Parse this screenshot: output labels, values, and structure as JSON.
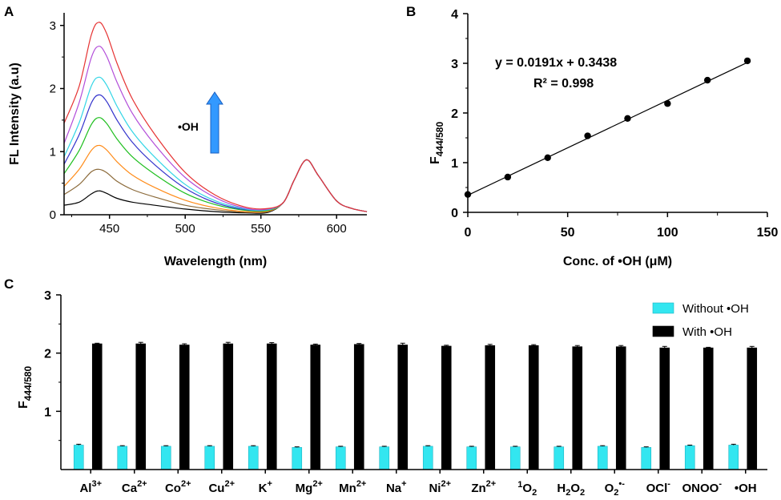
{
  "chart_data": [
    {
      "panel": "A",
      "type": "line",
      "xlabel": "Wavelength (nm)",
      "ylabel": "FL Intensity (a.u)",
      "xlim": [
        420,
        620
      ],
      "ylim": [
        0,
        3.2
      ],
      "xticks": [
        450,
        500,
        550,
        600
      ],
      "yticks": [
        0,
        1,
        2,
        3
      ],
      "annotation": "•OH",
      "arrow_color": "#3399ff",
      "series": [
        {
          "color": "#000000",
          "values": [
            [
              420,
              0.15
            ],
            [
              430,
              0.2
            ],
            [
              438,
              0.33
            ],
            [
              443,
              0.38
            ],
            [
              448,
              0.34
            ],
            [
              455,
              0.26
            ],
            [
              465,
              0.2
            ],
            [
              480,
              0.15
            ],
            [
              500,
              0.09
            ],
            [
              520,
              0.05
            ],
            [
              540,
              0.03
            ],
            [
              555,
              0.04
            ],
            [
              565,
              0.2
            ],
            [
              572,
              0.55
            ],
            [
              580,
              0.87
            ],
            [
              588,
              0.62
            ],
            [
              600,
              0.22
            ],
            [
              610,
              0.1
            ],
            [
              620,
              0.05
            ]
          ]
        },
        {
          "color": "#8b6a3a",
          "values": [
            [
              420,
              0.32
            ],
            [
              430,
              0.48
            ],
            [
              438,
              0.68
            ],
            [
              443,
              0.72
            ],
            [
              448,
              0.67
            ],
            [
              455,
              0.53
            ],
            [
              465,
              0.4
            ],
            [
              480,
              0.28
            ],
            [
              500,
              0.15
            ],
            [
              520,
              0.08
            ],
            [
              540,
              0.04
            ],
            [
              555,
              0.05
            ],
            [
              565,
              0.2
            ],
            [
              572,
              0.55
            ],
            [
              580,
              0.87
            ],
            [
              588,
              0.62
            ],
            [
              600,
              0.22
            ],
            [
              610,
              0.1
            ],
            [
              620,
              0.05
            ]
          ]
        },
        {
          "color": "#ff8c1a",
          "values": [
            [
              420,
              0.45
            ],
            [
              430,
              0.72
            ],
            [
              438,
              1.02
            ],
            [
              443,
              1.1
            ],
            [
              448,
              1.03
            ],
            [
              455,
              0.84
            ],
            [
              465,
              0.63
            ],
            [
              480,
              0.43
            ],
            [
              500,
              0.23
            ],
            [
              520,
              0.11
            ],
            [
              540,
              0.05
            ],
            [
              555,
              0.06
            ],
            [
              565,
              0.2
            ],
            [
              572,
              0.55
            ],
            [
              580,
              0.87
            ],
            [
              588,
              0.62
            ],
            [
              600,
              0.22
            ],
            [
              610,
              0.1
            ],
            [
              620,
              0.05
            ]
          ]
        },
        {
          "color": "#1fbf1f",
          "values": [
            [
              420,
              0.65
            ],
            [
              430,
              1.02
            ],
            [
              438,
              1.43
            ],
            [
              443,
              1.54
            ],
            [
              448,
              1.45
            ],
            [
              455,
              1.2
            ],
            [
              465,
              0.92
            ],
            [
              480,
              0.64
            ],
            [
              500,
              0.34
            ],
            [
              520,
              0.16
            ],
            [
              540,
              0.07
            ],
            [
              555,
              0.07
            ],
            [
              565,
              0.2
            ],
            [
              572,
              0.55
            ],
            [
              580,
              0.87
            ],
            [
              588,
              0.62
            ],
            [
              600,
              0.22
            ],
            [
              610,
              0.1
            ],
            [
              620,
              0.05
            ]
          ]
        },
        {
          "color": "#3333cc",
          "values": [
            [
              420,
              0.8
            ],
            [
              430,
              1.27
            ],
            [
              438,
              1.77
            ],
            [
              443,
              1.9
            ],
            [
              448,
              1.8
            ],
            [
              455,
              1.5
            ],
            [
              465,
              1.15
            ],
            [
              480,
              0.79
            ],
            [
              500,
              0.42
            ],
            [
              520,
              0.19
            ],
            [
              540,
              0.08
            ],
            [
              555,
              0.08
            ],
            [
              565,
              0.2
            ],
            [
              572,
              0.55
            ],
            [
              580,
              0.87
            ],
            [
              588,
              0.62
            ],
            [
              600,
              0.22
            ],
            [
              610,
              0.1
            ],
            [
              620,
              0.05
            ]
          ]
        },
        {
          "color": "#33d6e6",
          "values": [
            [
              420,
              0.92
            ],
            [
              430,
              1.46
            ],
            [
              438,
              2.04
            ],
            [
              443,
              2.18
            ],
            [
              448,
              2.06
            ],
            [
              455,
              1.72
            ],
            [
              465,
              1.32
            ],
            [
              480,
              0.91
            ],
            [
              500,
              0.48
            ],
            [
              520,
              0.22
            ],
            [
              540,
              0.09
            ],
            [
              555,
              0.08
            ],
            [
              565,
              0.2
            ],
            [
              572,
              0.55
            ],
            [
              580,
              0.87
            ],
            [
              588,
              0.62
            ],
            [
              600,
              0.22
            ],
            [
              610,
              0.1
            ],
            [
              620,
              0.05
            ]
          ]
        },
        {
          "color": "#b24dd9",
          "values": [
            [
              420,
              1.13
            ],
            [
              430,
              1.78
            ],
            [
              438,
              2.49
            ],
            [
              443,
              2.67
            ],
            [
              448,
              2.52
            ],
            [
              455,
              2.1
            ],
            [
              465,
              1.61
            ],
            [
              480,
              1.11
            ],
            [
              500,
              0.59
            ],
            [
              520,
              0.27
            ],
            [
              540,
              0.1
            ],
            [
              555,
              0.09
            ],
            [
              565,
              0.2
            ],
            [
              572,
              0.55
            ],
            [
              580,
              0.87
            ],
            [
              588,
              0.62
            ],
            [
              600,
              0.22
            ],
            [
              610,
              0.1
            ],
            [
              620,
              0.05
            ]
          ]
        },
        {
          "color": "#e63333",
          "values": [
            [
              420,
              1.45
            ],
            [
              430,
              2.04
            ],
            [
              438,
              2.85
            ],
            [
              443,
              3.05
            ],
            [
              448,
              2.88
            ],
            [
              455,
              2.4
            ],
            [
              465,
              1.84
            ],
            [
              480,
              1.27
            ],
            [
              500,
              0.67
            ],
            [
              520,
              0.31
            ],
            [
              540,
              0.12
            ],
            [
              555,
              0.1
            ],
            [
              565,
              0.2
            ],
            [
              572,
              0.55
            ],
            [
              580,
              0.87
            ],
            [
              588,
              0.62
            ],
            [
              600,
              0.22
            ],
            [
              610,
              0.1
            ],
            [
              620,
              0.05
            ]
          ]
        }
      ]
    },
    {
      "panel": "B",
      "type": "scatter",
      "xlabel": "Conc. of •OH (μM)",
      "ylabel": "F",
      "ylabel_sub": "444/580",
      "xlim": [
        0,
        150
      ],
      "ylim": [
        0,
        4
      ],
      "xticks": [
        0,
        50,
        100,
        150
      ],
      "yticks": [
        0,
        1,
        2,
        3,
        4
      ],
      "equation": "y = 0.0191x + 0.3438",
      "r2": "R² = 0.998",
      "fit": {
        "slope": 0.0191,
        "intercept": 0.3438
      },
      "x": [
        0,
        20,
        40,
        60,
        80,
        100,
        120,
        140
      ],
      "y": [
        0.36,
        0.71,
        1.1,
        1.54,
        1.89,
        2.19,
        2.66,
        3.05
      ]
    },
    {
      "panel": "C",
      "type": "bar",
      "ylabel": "F",
      "ylabel_sub": "444/580",
      "ylim": [
        0,
        3
      ],
      "yticks": [
        0,
        1,
        2,
        3
      ],
      "legend_position": "top-right",
      "categories": [
        {
          "base": "Al",
          "sup": "3+"
        },
        {
          "base": "Ca",
          "sup": "2+"
        },
        {
          "base": "Co",
          "sup": "2+"
        },
        {
          "base": "Cu",
          "sup": "2+"
        },
        {
          "base": "K",
          "sup": "+"
        },
        {
          "base": "Mg",
          "sup": "2+"
        },
        {
          "base": "Mn",
          "sup": "2+"
        },
        {
          "base": "Na",
          "sup": "+"
        },
        {
          "base": "Ni",
          "sup": "2+"
        },
        {
          "base": "Zn",
          "sup": "2+"
        },
        {
          "pre_sup": "1",
          "base": "O",
          "sub": "2"
        },
        {
          "base": "H",
          "sub": "2",
          "base2": "O",
          "sub2": "2"
        },
        {
          "base": "O",
          "sub": "2",
          "sup": "•-"
        },
        {
          "base": "OCl",
          "sup": "-"
        },
        {
          "base": "ONOO",
          "sup": "-"
        },
        {
          "base": "•OH"
        }
      ],
      "series": [
        {
          "name": "Without •OH",
          "color": "#33e6f0",
          "values": [
            0.42,
            0.4,
            0.4,
            0.4,
            0.4,
            0.38,
            0.39,
            0.39,
            0.4,
            0.39,
            0.39,
            0.39,
            0.4,
            0.38,
            0.41,
            0.42
          ],
          "errors": [
            0.015,
            0.01,
            0.01,
            0.01,
            0.01,
            0.01,
            0.01,
            0.01,
            0.01,
            0.01,
            0.01,
            0.01,
            0.01,
            0.01,
            0.01,
            0.015
          ]
        },
        {
          "name": "With •OH",
          "color": "#000000",
          "values": [
            2.16,
            2.16,
            2.14,
            2.16,
            2.16,
            2.14,
            2.15,
            2.14,
            2.12,
            2.13,
            2.13,
            2.11,
            2.11,
            2.09,
            2.09,
            2.09
          ],
          "errors": [
            0.01,
            0.025,
            0.02,
            0.025,
            0.02,
            0.015,
            0.015,
            0.03,
            0.015,
            0.02,
            0.015,
            0.02,
            0.02,
            0.025,
            0.01,
            0.025
          ]
        }
      ]
    }
  ],
  "panels": {
    "a": "A",
    "b": "B",
    "c": "C"
  }
}
